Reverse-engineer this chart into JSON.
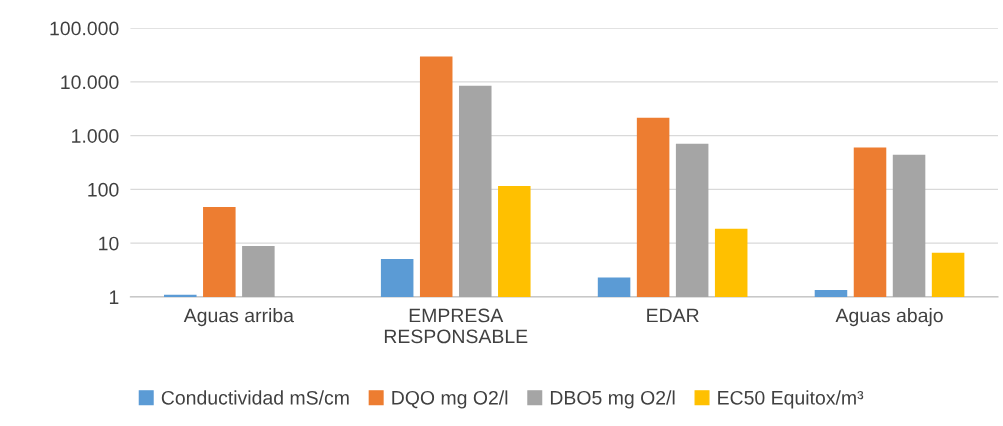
{
  "chart_data": {
    "type": "bar",
    "categories": [
      "Aguas arriba",
      "EMPRESA\nRESPONSABLE",
      "EDAR",
      "Aguas abajo"
    ],
    "series": [
      {
        "name": "Conductividad mS/cm",
        "color": "#5b9bd5",
        "values": [
          1.1,
          5.1,
          2.3,
          1.35
        ]
      },
      {
        "name": "DQO mg O2/l",
        "color": "#ed7d31",
        "values": [
          47,
          29500,
          2150,
          600
        ]
      },
      {
        "name": "DBO5 mg O2/l",
        "color": "#a5a5a5",
        "values": [
          8.9,
          8500,
          710,
          440
        ]
      },
      {
        "name": "EC50 Equitox/m³",
        "color": "#ffc000",
        "values": [
          null,
          116,
          18.5,
          6.6
        ]
      }
    ],
    "log": "y",
    "ylim": [
      1,
      100000
    ],
    "yticks": [
      1,
      10,
      100,
      {
        "value": 1000,
        "label": "1.000"
      },
      {
        "value": 10000,
        "label": "10.000"
      },
      {
        "value": 100000,
        "label": "100.000"
      }
    ],
    "grid": "y",
    "legend": "bottom"
  }
}
